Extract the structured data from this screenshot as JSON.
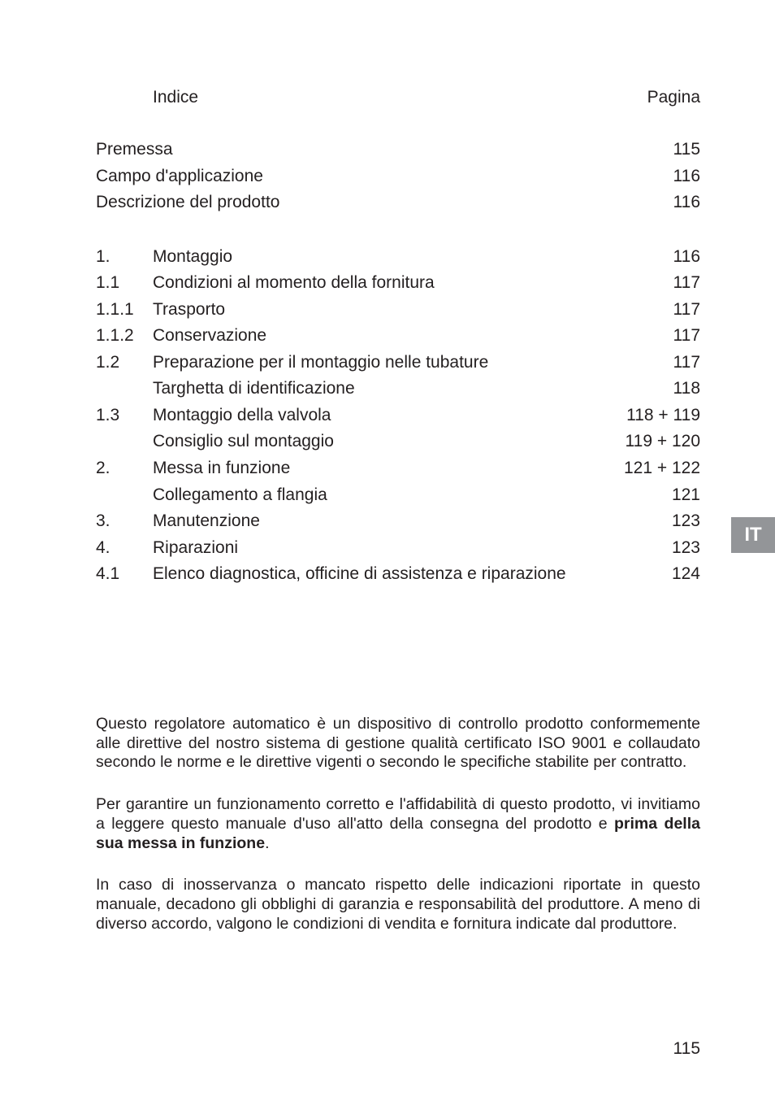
{
  "header": {
    "left": "Indice",
    "right": "Pagina"
  },
  "toc_top": [
    {
      "num": "",
      "label": "Premessa",
      "page": "115"
    },
    {
      "num": "",
      "label": "Campo d'applicazione",
      "page": "116"
    },
    {
      "num": "",
      "label": "Descrizione del prodotto",
      "page": "116"
    }
  ],
  "toc_main": [
    {
      "num": "1.",
      "label": "Montaggio",
      "page": "116"
    },
    {
      "num": "1.1",
      "label": "Condizioni al momento della fornitura",
      "page": "117"
    },
    {
      "num": "1.1.1",
      "label": "Trasporto",
      "page": "117"
    },
    {
      "num": "1.1.2",
      "label": "Conservazione",
      "page": "117"
    },
    {
      "num": "1.2",
      "label": "Preparazione per il montaggio nelle tubature",
      "page": "117"
    },
    {
      "num": "",
      "label": "Targhetta di identificazione",
      "page": "118"
    },
    {
      "num": "1.3",
      "label": "Montaggio della valvola",
      "page": "118 + 119"
    },
    {
      "num": "",
      "label": "Consiglio sul montaggio",
      "page": "119 + 120"
    },
    {
      "num": "2.",
      "label": "Messa in funzione",
      "page": "121 + 122"
    },
    {
      "num": "",
      "label": "Collegamento a flangia",
      "page": "121"
    },
    {
      "num": "3.",
      "label": "Manutenzione",
      "page": "123"
    },
    {
      "num": "4.",
      "label": "Riparazioni",
      "page": "123"
    },
    {
      "num": "4.1",
      "label": "Elenco diagnostica, officine di assistenza e riparazione",
      "page": "124"
    }
  ],
  "lang_tab": "IT",
  "paragraphs": {
    "p1": "Questo regolatore automatico è un dispositivo di controllo prodotto conformemente alle direttive del nostro sistema di gestione qualità certificato ISO 9001 e collaudato secondo le norme e le direttive vigenti o secondo le specifiche stabilite per contratto.",
    "p2a": "Per garantire un funzionamento corretto e l'affidabilità di questo prodotto, vi invitiamo a leggere questo manuale d'uso all'atto della consegna del prodotto e ",
    "p2b_bold": "prima della sua messa in funzione",
    "p2c": ".",
    "p3": "In caso di inosservanza o mancato rispetto delle indicazioni riportate in questo manuale, decadono gli obblighi di garanzia e responsabilità del produttore. A meno di diverso accordo, valgono le condizioni di vendita e fornitura indicate dal produttore."
  },
  "page_number": "115",
  "colors": {
    "text": "#231f20",
    "tab_bg": "#939598",
    "tab_text": "#ffffff",
    "page_bg": "#ffffff"
  }
}
